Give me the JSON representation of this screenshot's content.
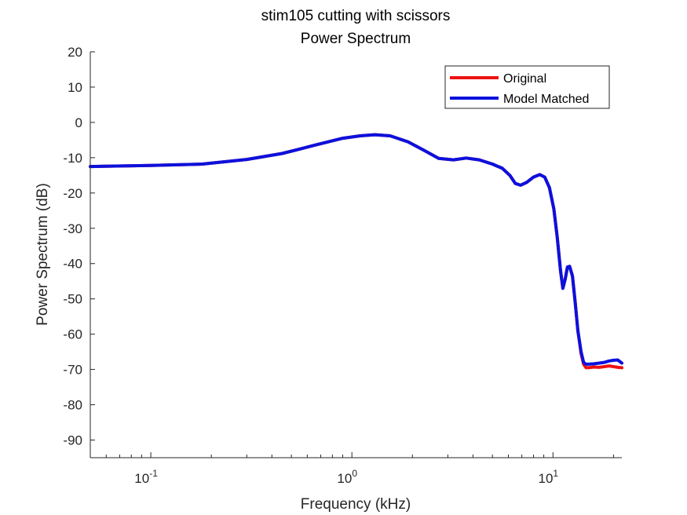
{
  "chart_data": {
    "type": "line",
    "title": "stim105 cutting with scissors",
    "subtitle": "Power Spectrum",
    "xlabel": "Frequency (kHz)",
    "ylabel": "Power Spectrum (dB)",
    "xscale": "log",
    "xlim": [
      0.05,
      22
    ],
    "ylim": [
      -95,
      20
    ],
    "yticks": [
      20,
      10,
      0,
      -10,
      -20,
      -30,
      -40,
      -50,
      -60,
      -70,
      -80,
      -90
    ],
    "ytick_labels": [
      "20",
      "10",
      "0",
      "-10",
      "-20",
      "-30",
      "-40",
      "-50",
      "-60",
      "-70",
      "-80",
      "-90"
    ],
    "xticks": [
      0.1,
      1,
      10
    ],
    "xtick_bases": [
      "10",
      "10",
      "10"
    ],
    "xtick_exponents": [
      "-1",
      "0",
      "1"
    ],
    "grid": false,
    "legend_position": "top-right",
    "series": [
      {
        "name": "Original",
        "color": "#ee1111",
        "x": [
          0.05,
          0.1,
          0.18,
          0.3,
          0.45,
          0.65,
          0.9,
          1.1,
          1.3,
          1.55,
          1.9,
          2.3,
          2.7,
          3.2,
          3.7,
          4.3,
          5.0,
          5.6,
          6.1,
          6.5,
          6.9,
          7.4,
          8.0,
          8.6,
          9.1,
          9.6,
          10.1,
          10.5,
          10.9,
          11.2,
          11.5,
          11.8,
          12.1,
          12.5,
          12.9,
          13.3,
          13.8,
          14.2,
          14.6,
          15.0,
          16,
          17,
          18,
          19,
          20,
          21,
          22
        ],
        "y": [
          -12.5,
          -12.2,
          -11.8,
          -10.5,
          -8.8,
          -6.5,
          -4.5,
          -3.8,
          -3.5,
          -3.8,
          -5.5,
          -8.0,
          -10.2,
          -10.6,
          -10.1,
          -10.6,
          -11.8,
          -13.0,
          -15.0,
          -17.3,
          -17.8,
          -17.0,
          -15.5,
          -14.8,
          -15.5,
          -18.5,
          -24.5,
          -32.5,
          -42.0,
          -47.0,
          -44.5,
          -41.0,
          -40.8,
          -43.5,
          -51.0,
          -59.0,
          -65.5,
          -68.5,
          -69.5,
          -69.5,
          -69.3,
          -69.4,
          -69.2,
          -69.0,
          -69.2,
          -69.4,
          -69.5
        ]
      },
      {
        "name": "Model Matched",
        "color": "#0b11dd",
        "x": [
          0.05,
          0.1,
          0.18,
          0.3,
          0.45,
          0.65,
          0.9,
          1.1,
          1.3,
          1.55,
          1.9,
          2.3,
          2.7,
          3.2,
          3.7,
          4.3,
          5.0,
          5.6,
          6.1,
          6.5,
          6.9,
          7.4,
          8.0,
          8.6,
          9.1,
          9.6,
          10.1,
          10.5,
          10.9,
          11.2,
          11.5,
          11.8,
          12.1,
          12.5,
          12.9,
          13.3,
          13.8,
          14.2,
          14.6,
          15.0,
          16,
          17,
          18,
          19,
          20,
          21,
          22
        ],
        "y": [
          -12.5,
          -12.2,
          -11.8,
          -10.5,
          -8.8,
          -6.5,
          -4.5,
          -3.8,
          -3.5,
          -3.8,
          -5.5,
          -8.0,
          -10.2,
          -10.6,
          -10.1,
          -10.6,
          -11.8,
          -13.0,
          -15.0,
          -17.3,
          -17.8,
          -17.0,
          -15.5,
          -14.8,
          -15.5,
          -18.5,
          -24.5,
          -32.5,
          -42.0,
          -47.0,
          -44.5,
          -41.0,
          -40.8,
          -43.5,
          -51.0,
          -59.0,
          -65.0,
          -68.0,
          -68.5,
          -68.5,
          -68.4,
          -68.2,
          -68.0,
          -67.6,
          -67.4,
          -67.3,
          -68.2
        ]
      }
    ]
  }
}
